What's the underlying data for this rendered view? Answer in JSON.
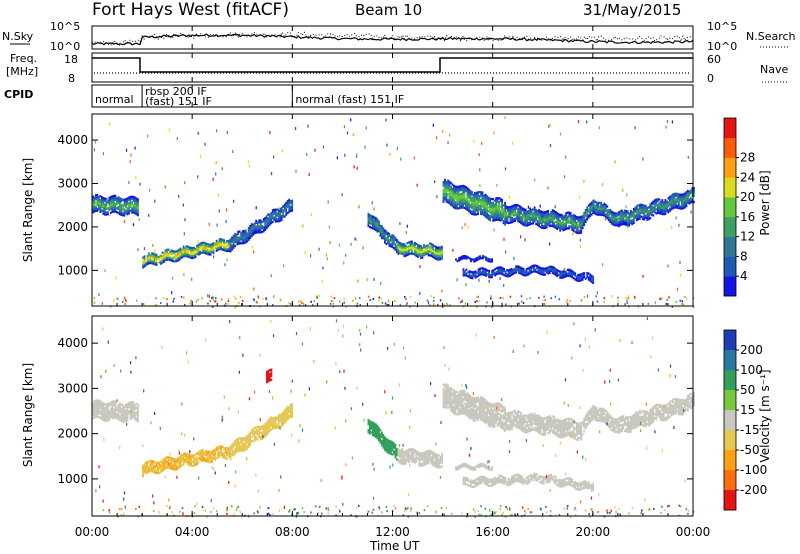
{
  "header": {
    "station": "Fort Hays West (fitACF)",
    "beam": "Beam 10",
    "date": "31/May/2015"
  },
  "noise_panel": {
    "left_label": "N.Sky",
    "right_label": "N.Search",
    "left_ticks": [
      "10^5",
      "10^0"
    ],
    "right_ticks": [
      "10^5",
      "10^0"
    ]
  },
  "freq_panel": {
    "left_label_1": "Freq.",
    "left_label_2": "[MHz]",
    "right_label": "Nave",
    "left_ticks": [
      "18",
      "8"
    ],
    "right_ticks": [
      "60",
      "0"
    ]
  },
  "cpid_panel": {
    "label": "CPID",
    "segments": [
      {
        "start": 0,
        "end": 2,
        "text": [
          "normal"
        ]
      },
      {
        "start": 2,
        "end": 8,
        "text": [
          "rbsp 200 IF",
          "(fast) 151 IF"
        ]
      },
      {
        "start": 8,
        "end": 24,
        "text": [
          "normal (fast) 151 IF"
        ]
      }
    ]
  },
  "chart_data": [
    {
      "type": "heatmap",
      "name": "power",
      "ylabel": "Slant Range [km]",
      "yticks": [
        "1000",
        "2000",
        "3000",
        "4000"
      ],
      "ylim": [
        180,
        4600
      ],
      "colorbar": {
        "label": "Power [dB]",
        "ticks": [
          "4",
          "8",
          "12",
          "16",
          "20",
          "24",
          "28"
        ],
        "range": [
          0,
          32
        ],
        "colors": [
          "#1414e6",
          "#1e5ab4",
          "#327896",
          "#3ca064",
          "#64c83c",
          "#dcdc1e",
          "#ffa014",
          "#ff5a0a",
          "#e61414"
        ]
      },
      "bands": [
        {
          "start": 0.0,
          "end": 1.85,
          "r_start": 2500,
          "r_end": 2450,
          "half_width": 180,
          "peak": 15
        },
        {
          "start": 2.0,
          "end": 5.5,
          "r_start": 1200,
          "r_end": 1600,
          "half_width": 120,
          "peak": 24
        },
        {
          "start": 5.5,
          "end": 8.0,
          "r_start": 1600,
          "r_end": 2500,
          "half_width": 150,
          "peak": 10
        },
        {
          "start": 11.0,
          "end": 12.2,
          "r_start": 2200,
          "r_end": 1500,
          "half_width": 150,
          "peak": 12
        },
        {
          "start": 12.2,
          "end": 14.0,
          "r_start": 1500,
          "r_end": 1400,
          "half_width": 140,
          "peak": 20
        },
        {
          "start": 14.0,
          "end": 16.5,
          "r_start": 2800,
          "r_end": 2300,
          "half_width": 250,
          "peak": 17
        },
        {
          "start": 16.5,
          "end": 19.5,
          "r_start": 2300,
          "r_end": 2050,
          "half_width": 180,
          "peak": 14
        },
        {
          "start": 19.5,
          "end": 20.0,
          "r_start": 2050,
          "r_end": 2500,
          "half_width": 150,
          "peak": 12
        },
        {
          "start": 20.0,
          "end": 21.0,
          "r_start": 2500,
          "r_end": 2150,
          "half_width": 150,
          "peak": 12
        },
        {
          "start": 21.0,
          "end": 24.0,
          "r_start": 2150,
          "r_end": 2700,
          "half_width": 170,
          "peak": 12
        },
        {
          "start": 14.8,
          "end": 18.0,
          "r_start": 900,
          "r_end": 1000,
          "half_width": 70,
          "peak": 8
        },
        {
          "start": 18.0,
          "end": 20.0,
          "r_start": 1000,
          "r_end": 800,
          "half_width": 80,
          "peak": 6
        },
        {
          "start": 14.5,
          "end": 16.0,
          "r_start": 1250,
          "r_end": 1250,
          "half_width": 25,
          "peak": 8
        }
      ]
    },
    {
      "type": "heatmap",
      "name": "velocity",
      "ylabel": "Slant Range [km]",
      "yticks": [
        "1000",
        "2000",
        "3000",
        "4000"
      ],
      "ylim": [
        180,
        4600
      ],
      "colorbar": {
        "label": "Velocity [m s⁻¹]",
        "ticks": [
          "200",
          "100",
          "50",
          "15",
          "-15",
          "-50",
          "-100",
          "-200"
        ],
        "colors": [
          "#1e3cb4",
          "#2878a0",
          "#32a05a",
          "#78c83c",
          "#c8c8be",
          "#e6c850",
          "#ffa014",
          "#ff6e0a",
          "#e61414"
        ]
      },
      "bands": [
        {
          "start": 0.0,
          "end": 1.85,
          "r_start": 2500,
          "r_end": 2450,
          "half_width": 180,
          "value": 0
        },
        {
          "start": 2.0,
          "end": 5.5,
          "r_start": 1200,
          "r_end": 1600,
          "half_width": 120,
          "value": -30
        },
        {
          "start": 5.5,
          "end": 8.0,
          "r_start": 1600,
          "r_end": 2500,
          "half_width": 150,
          "value": -20
        },
        {
          "start": 11.0,
          "end": 12.2,
          "r_start": 2200,
          "r_end": 1500,
          "half_width": 150,
          "value": 40
        },
        {
          "start": 12.2,
          "end": 14.0,
          "r_start": 1500,
          "r_end": 1400,
          "half_width": 140,
          "value": 0
        },
        {
          "start": 14.0,
          "end": 16.5,
          "r_start": 2800,
          "r_end": 2300,
          "half_width": 250,
          "value": 0
        },
        {
          "start": 16.5,
          "end": 19.5,
          "r_start": 2300,
          "r_end": 2050,
          "half_width": 180,
          "value": 0
        },
        {
          "start": 19.5,
          "end": 20.0,
          "r_start": 2050,
          "r_end": 2500,
          "half_width": 150,
          "value": 0
        },
        {
          "start": 20.0,
          "end": 21.0,
          "r_start": 2500,
          "r_end": 2150,
          "half_width": 150,
          "value": 0
        },
        {
          "start": 21.0,
          "end": 24.0,
          "r_start": 2150,
          "r_end": 2700,
          "half_width": 170,
          "value": 0
        },
        {
          "start": 14.8,
          "end": 18.0,
          "r_start": 900,
          "r_end": 1000,
          "half_width": 70,
          "value": 0
        },
        {
          "start": 18.0,
          "end": 20.0,
          "r_start": 1000,
          "r_end": 800,
          "half_width": 80,
          "value": 0
        },
        {
          "start": 14.5,
          "end": 16.0,
          "r_start": 1250,
          "r_end": 1250,
          "half_width": 25,
          "value": 0
        },
        {
          "start": 6.95,
          "end": 7.15,
          "r_start": 3250,
          "r_end": 3250,
          "half_width": 120,
          "value": -200
        }
      ]
    }
  ],
  "x_axis": {
    "label": "Time UT",
    "range": [
      0,
      24
    ],
    "ticks": [
      {
        "t": 0,
        "label": "00:00"
      },
      {
        "t": 4,
        "label": "04:00"
      },
      {
        "t": 8,
        "label": "08:00"
      },
      {
        "t": 12,
        "label": "12:00"
      },
      {
        "t": 16,
        "label": "16:00"
      },
      {
        "t": 20,
        "label": "20:00"
      },
      {
        "t": 24,
        "label": "00:00"
      }
    ]
  }
}
